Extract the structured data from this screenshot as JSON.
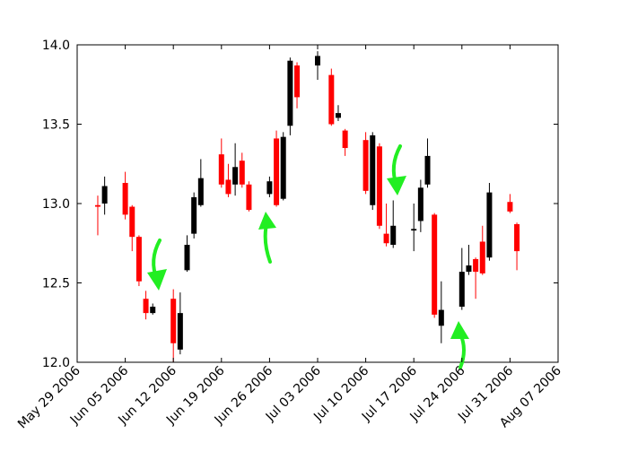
{
  "chart_data": {
    "type": "candlestick",
    "x": [
      "2006-06-01",
      "2006-06-02",
      "2006-06-05",
      "2006-06-06",
      "2006-06-07",
      "2006-06-08",
      "2006-06-09",
      "2006-06-12",
      "2006-06-13",
      "2006-06-14",
      "2006-06-15",
      "2006-06-16",
      "2006-06-19",
      "2006-06-20",
      "2006-06-21",
      "2006-06-22",
      "2006-06-23",
      "2006-06-26",
      "2006-06-27",
      "2006-06-28",
      "2006-06-29",
      "2006-06-30",
      "2006-07-03",
      "2006-07-05",
      "2006-07-06",
      "2006-07-07",
      "2006-07-10",
      "2006-07-11",
      "2006-07-12",
      "2006-07-13",
      "2006-07-14",
      "2006-07-17",
      "2006-07-18",
      "2006-07-19",
      "2006-07-20",
      "2006-07-21",
      "2006-07-24",
      "2006-07-25",
      "2006-07-26",
      "2006-07-27",
      "2006-07-28",
      "2006-07-31",
      "2006-08-01"
    ],
    "open": [
      12.99,
      13.0,
      13.13,
      12.98,
      12.79,
      12.4,
      12.31,
      12.4,
      12.08,
      12.58,
      12.81,
      12.99,
      13.31,
      13.15,
      13.12,
      13.27,
      13.12,
      13.06,
      13.41,
      13.03,
      13.49,
      13.87,
      13.87,
      13.81,
      13.54,
      13.46,
      13.4,
      12.99,
      13.36,
      12.81,
      12.74,
      12.83,
      12.89,
      13.12,
      12.93,
      12.23,
      12.35,
      12.57,
      12.65,
      12.76,
      12.66,
      13.01,
      12.87
    ],
    "high": [
      13.05,
      13.17,
      13.2,
      12.99,
      12.8,
      12.45,
      12.37,
      12.46,
      12.44,
      12.8,
      13.07,
      13.28,
      13.41,
      13.25,
      13.38,
      13.32,
      13.14,
      13.17,
      13.46,
      13.45,
      13.92,
      13.89,
      13.96,
      13.85,
      13.62,
      13.47,
      13.45,
      13.45,
      13.38,
      13.0,
      13.02,
      13.0,
      13.15,
      13.41,
      12.94,
      12.51,
      12.72,
      12.74,
      12.66,
      12.86,
      13.13,
      13.06,
      12.88
    ],
    "low": [
      12.8,
      12.93,
      12.9,
      12.7,
      12.48,
      12.27,
      12.3,
      12.0,
      12.05,
      12.57,
      12.78,
      12.98,
      13.1,
      13.04,
      13.05,
      13.1,
      12.95,
      13.04,
      12.98,
      13.02,
      13.43,
      13.6,
      13.78,
      13.49,
      13.52,
      13.3,
      13.06,
      12.96,
      12.84,
      12.73,
      12.72,
      12.7,
      12.82,
      13.1,
      12.28,
      12.12,
      12.33,
      12.55,
      12.4,
      12.55,
      12.64,
      12.94,
      12.58
    ],
    "close": [
      12.98,
      13.11,
      12.93,
      12.79,
      12.51,
      12.31,
      12.35,
      12.12,
      12.31,
      12.74,
      13.04,
      13.16,
      13.12,
      13.06,
      13.23,
      13.12,
      12.96,
      13.14,
      12.99,
      13.42,
      13.9,
      13.67,
      13.93,
      13.5,
      13.57,
      13.35,
      13.08,
      13.43,
      12.86,
      12.75,
      12.86,
      12.84,
      13.1,
      13.3,
      12.3,
      12.33,
      12.57,
      12.61,
      12.57,
      12.56,
      13.07,
      12.95,
      12.7
    ],
    "up_color": "#000000",
    "down_color": "#ff0000",
    "xlim": [
      "2006-05-29",
      "2006-08-07"
    ],
    "xticks": [
      {
        "value": "2006-05-29",
        "label": "May 29 2006"
      },
      {
        "value": "2006-06-05",
        "label": "Jun 05 2006"
      },
      {
        "value": "2006-06-12",
        "label": "Jun 12 2006"
      },
      {
        "value": "2006-06-19",
        "label": "Jun 19 2006"
      },
      {
        "value": "2006-06-26",
        "label": "Jun 26 2006"
      },
      {
        "value": "2006-07-03",
        "label": "Jul 03 2006"
      },
      {
        "value": "2006-07-10",
        "label": "Jul 10 2006"
      },
      {
        "value": "2006-07-17",
        "label": "Jul 17 2006"
      },
      {
        "value": "2006-07-24",
        "label": "Jul 24 2006"
      },
      {
        "value": "2006-07-31",
        "label": "Jul 31 2006"
      },
      {
        "value": "2006-08-07",
        "label": "Aug 07 2006"
      }
    ],
    "ylim": [
      12.0,
      14.0
    ],
    "yticks": [
      {
        "value": 12,
        "label": "12.0"
      },
      12.5,
      {
        "value": 13,
        "label": "13.0"
      },
      13.5,
      {
        "value": 14,
        "label": "14.0"
      }
    ]
  }
}
